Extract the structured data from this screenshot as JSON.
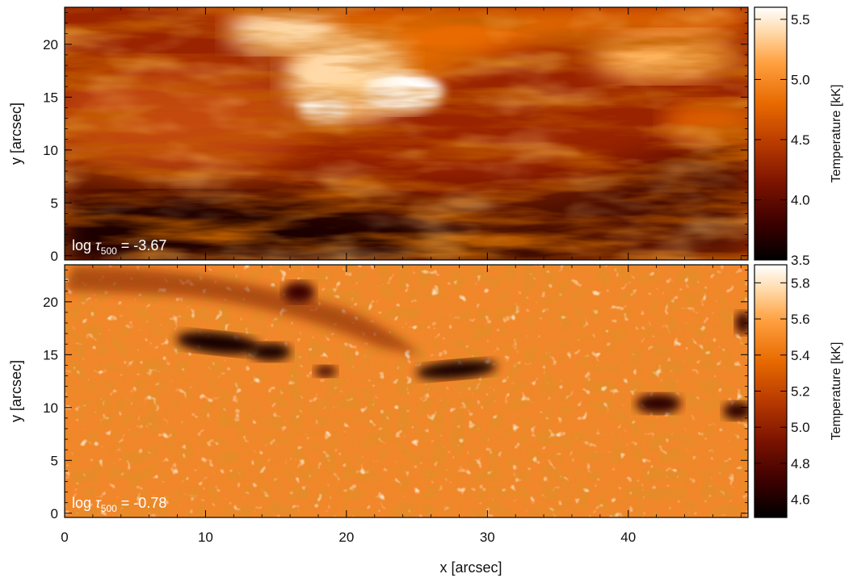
{
  "chart_data": [
    {
      "type": "heatmap",
      "panel": "top",
      "annotation": {
        "prefix": "log ",
        "symbol": "τ",
        "subscript": "500",
        "value_text": " = -3.67"
      },
      "xlabel": "x [arcsec]",
      "ylabel": "y [arcsec]",
      "xlim": [
        0,
        48.5
      ],
      "ylim": [
        -0.4,
        23.5
      ],
      "xticks": [
        0,
        10,
        20,
        30,
        40
      ],
      "yticks": [
        0,
        5,
        10,
        15,
        20
      ],
      "colorbar": {
        "label": "Temperature [kK]",
        "range": [
          3.5,
          5.6
        ],
        "ticks": [
          3.5,
          4.0,
          4.5,
          5.0,
          5.5
        ],
        "tick_labels": [
          "3.5",
          "4.0",
          "4.5",
          "5.0",
          "5.5"
        ]
      },
      "colormap": [
        "#000000",
        "#3a0000",
        "#7a1200",
        "#b83a00",
        "#e86a00",
        "#ffa040",
        "#ffd9a8",
        "#ffffff"
      ]
    },
    {
      "type": "heatmap",
      "panel": "bottom",
      "annotation": {
        "prefix": "log ",
        "symbol": "τ",
        "subscript": "500",
        "value_text": " = -0.78"
      },
      "xlabel": "x [arcsec]",
      "ylabel": "y [arcsec]",
      "xlim": [
        0,
        48.5
      ],
      "ylim": [
        -0.4,
        23.5
      ],
      "xticks": [
        0,
        10,
        20,
        30,
        40
      ],
      "yticks": [
        0,
        5,
        10,
        15,
        20
      ],
      "colorbar": {
        "label": "Temperature [kK]",
        "range": [
          4.5,
          5.9
        ],
        "ticks": [
          4.6,
          4.8,
          5.0,
          5.2,
          5.4,
          5.6,
          5.8
        ],
        "tick_labels": [
          "4.6",
          "4.8",
          "5.0",
          "5.2",
          "5.4",
          "5.6",
          "5.8"
        ]
      },
      "colormap": [
        "#000000",
        "#3a0000",
        "#7a1200",
        "#b83a00",
        "#e86a00",
        "#ffa040",
        "#ffd9a8",
        "#ffffff"
      ]
    }
  ],
  "shared_xlabel": "x [arcsec]",
  "shared_xticks": [
    0,
    10,
    20,
    30,
    40
  ]
}
